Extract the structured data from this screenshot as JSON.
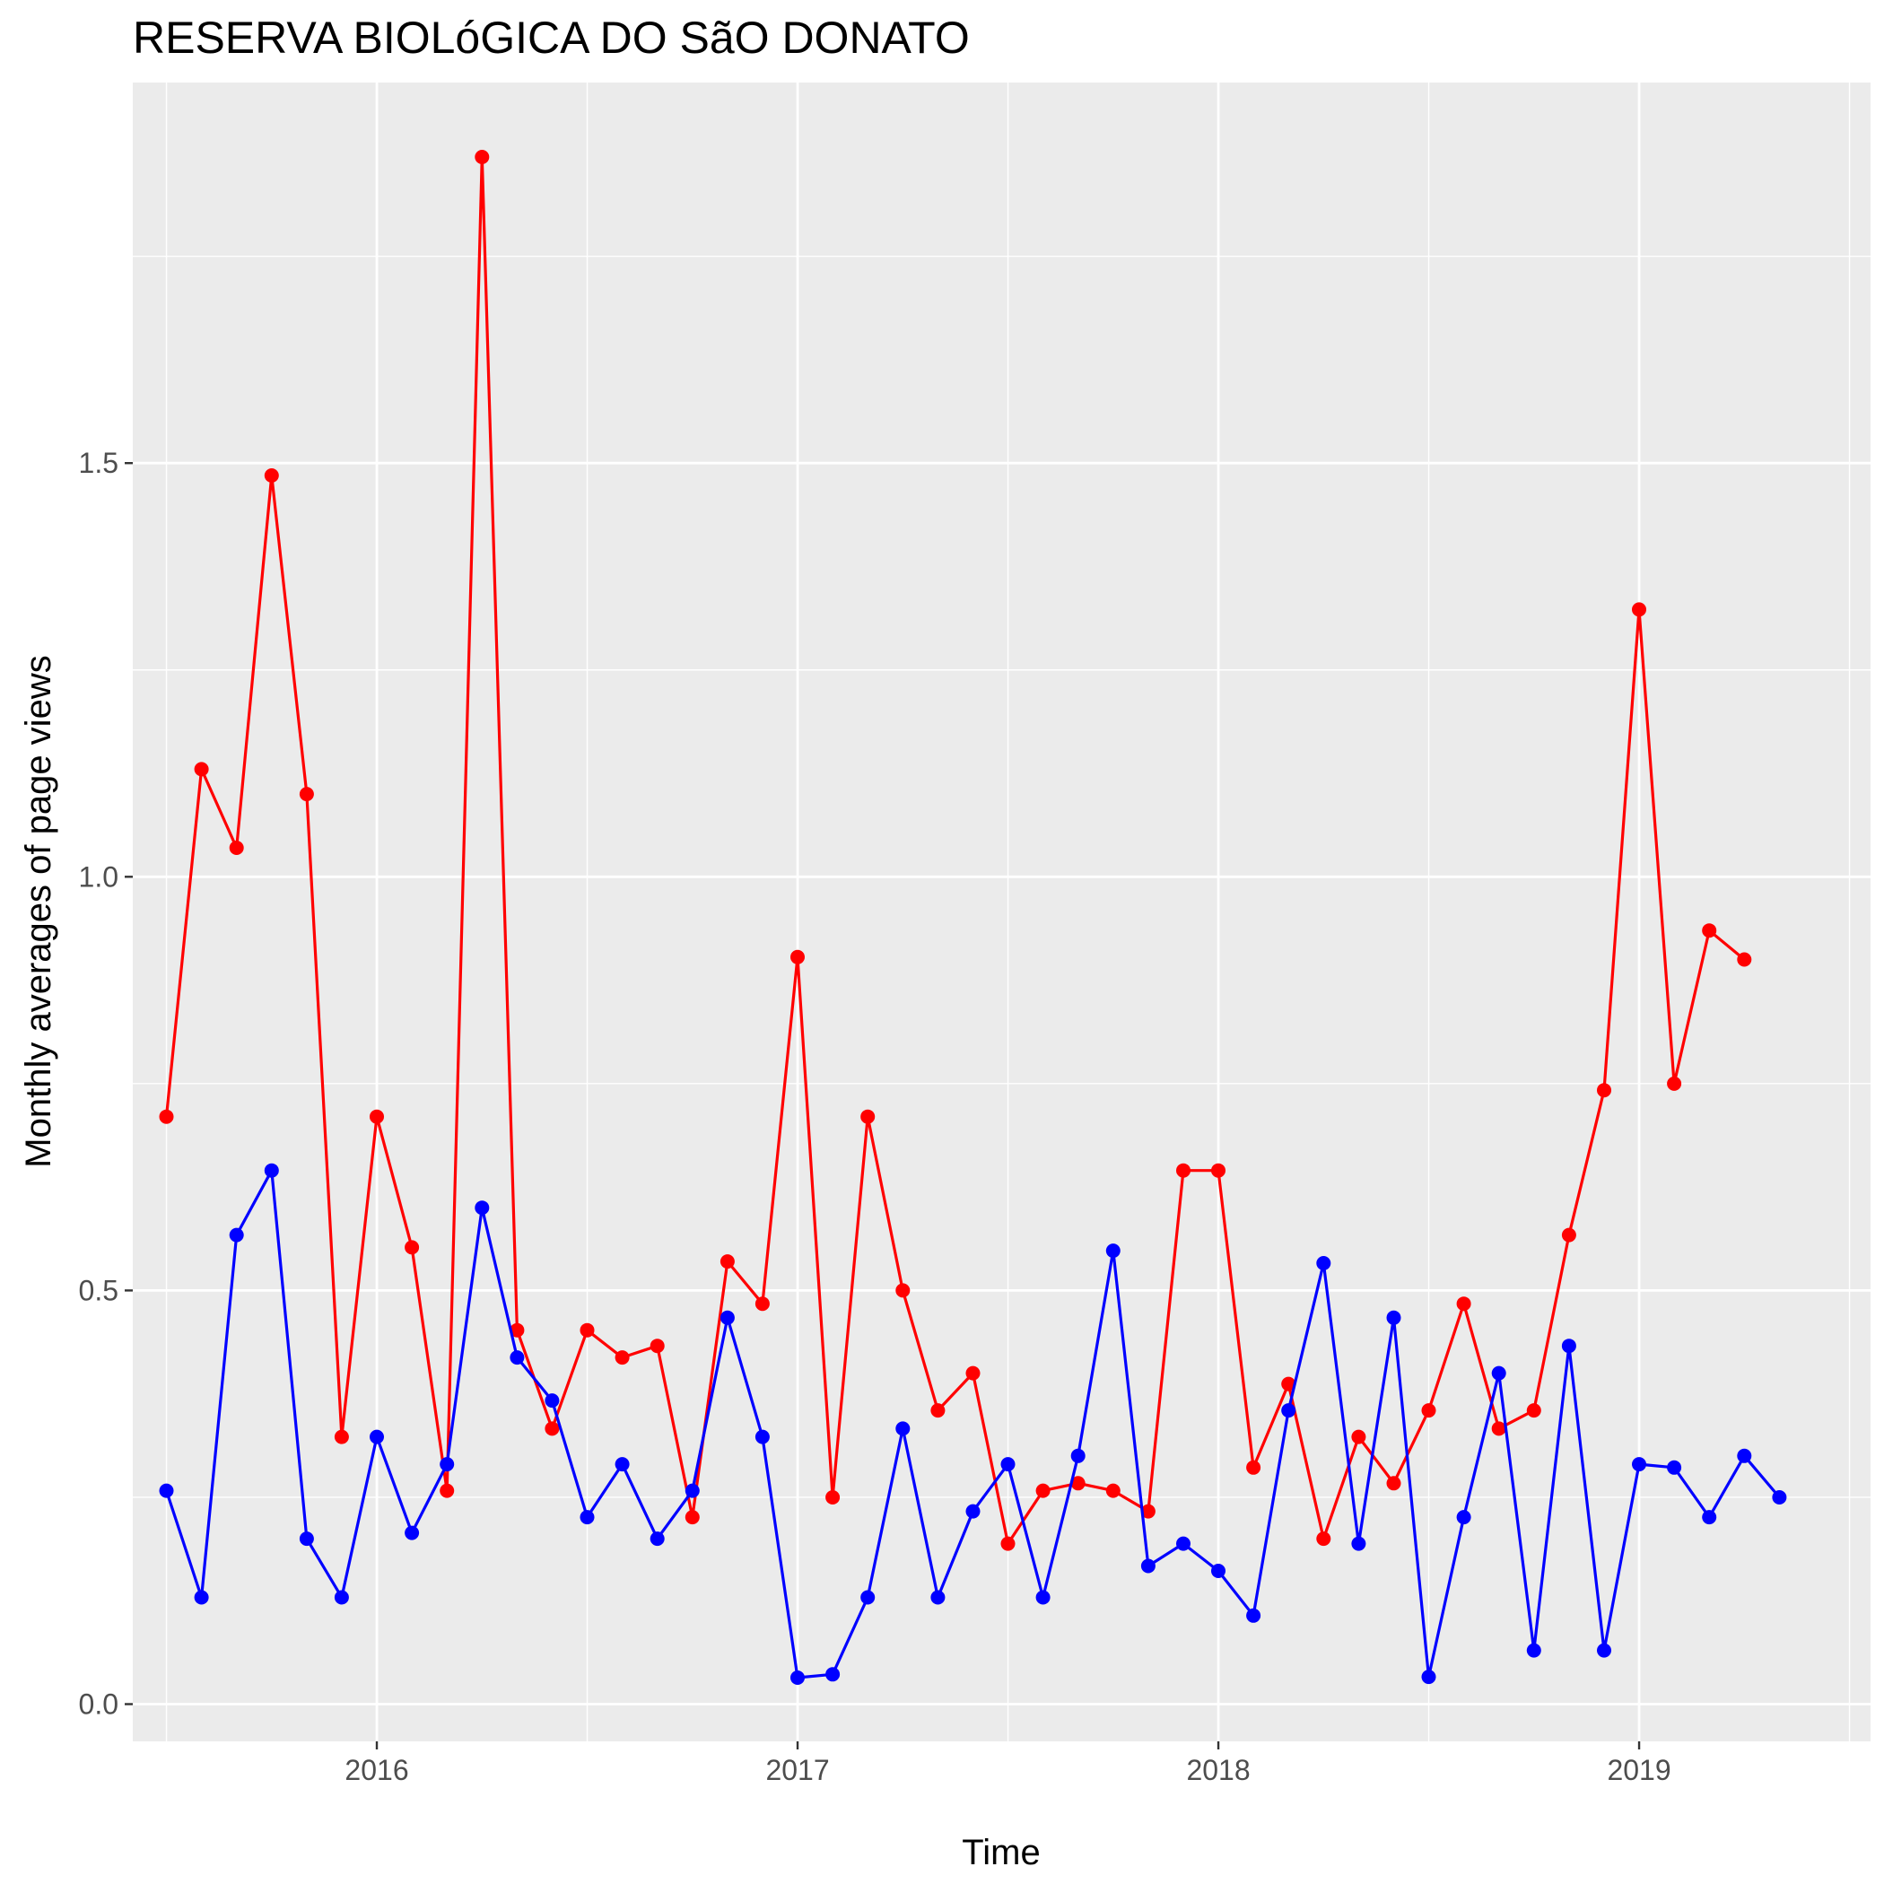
{
  "chart_data": {
    "type": "line",
    "title": "RESERVA BIOLóGICA DO SãO DONATO",
    "xlabel": "Time",
    "ylabel": "Monthly averages of page views",
    "xlim": [
      2015.42,
      2019.55
    ],
    "ylim": [
      -0.045,
      1.96
    ],
    "x_ticks": [
      2016,
      2017,
      2018,
      2019
    ],
    "x_tick_labels": [
      "2016",
      "2017",
      "2018",
      "2019"
    ],
    "y_ticks": [
      0.0,
      0.5,
      1.0,
      1.5
    ],
    "y_tick_labels": [
      "0.0",
      "0.5",
      "1.0",
      "1.5"
    ],
    "grid": true,
    "legend": "none",
    "x_start": "2015-07",
    "series": [
      {
        "color": "#ff0000",
        "values": [
          0.71,
          1.13,
          1.035,
          1.485,
          1.1,
          0.323,
          0.71,
          0.552,
          0.258,
          1.87,
          0.452,
          0.333,
          0.452,
          0.419,
          0.433,
          0.226,
          0.535,
          0.484,
          0.903,
          0.25,
          0.71,
          0.5,
          0.355,
          0.4,
          0.194,
          0.258,
          0.267,
          0.258,
          0.233,
          0.645,
          0.645,
          0.286,
          0.387,
          0.2,
          0.323,
          0.267,
          0.355,
          0.484,
          0.333,
          0.355,
          0.567,
          0.742,
          1.323,
          0.75,
          0.935,
          0.9
        ]
      },
      {
        "color": "#0000ff",
        "values": [
          0.258,
          0.129,
          0.567,
          0.645,
          0.2,
          0.129,
          0.323,
          0.207,
          0.29,
          0.6,
          0.419,
          0.367,
          0.226,
          0.29,
          0.2,
          0.258,
          0.467,
          0.323,
          0.032,
          0.036,
          0.129,
          0.333,
          0.129,
          0.233,
          0.29,
          0.129,
          0.3,
          0.548,
          0.167,
          0.194,
          0.161,
          0.107,
          0.355,
          0.533,
          0.194,
          0.467,
          0.033,
          0.226,
          0.4,
          0.065,
          0.433,
          0.065,
          0.29,
          0.286,
          0.226,
          0.3,
          0.25
        ]
      }
    ]
  }
}
